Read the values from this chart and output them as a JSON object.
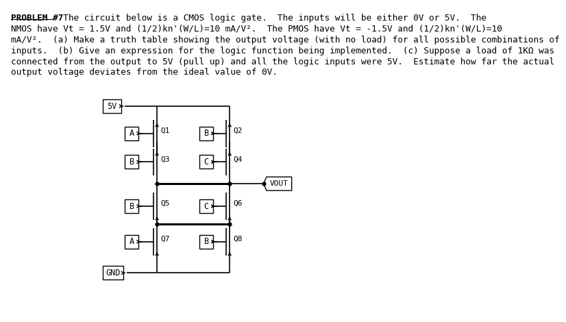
{
  "bg_color": "#ffffff",
  "text_color": "#000000",
  "font_size": 9.2,
  "line1_bold": "PROBLEM #7",
  "line1_rest": "  The circuit below is a CMOS logic gate.  The inputs will be either 0V or 5V.  The",
  "line2": "NMOS have Vt = 1.5V and (1/2)kn'(W/L)=10 mA/V².  The PMOS have Vt = -1.5V and (1/2)kn'(W/L)=10",
  "line3": "mA/V².  (a) Make a truth table showing the output voltage (with no load) for all possible combinations of",
  "line4": "inputs.  (b) Give an expression for the logic function being implemented.  (c) Suppose a load of 1KΩ was",
  "line5": "connected from the output to 5V (pull up) and all the logic inputs were 5V.  Estimate how far the actual",
  "line6": "output voltage deviates from the ideal value of 0V.",
  "lw": 1.2
}
